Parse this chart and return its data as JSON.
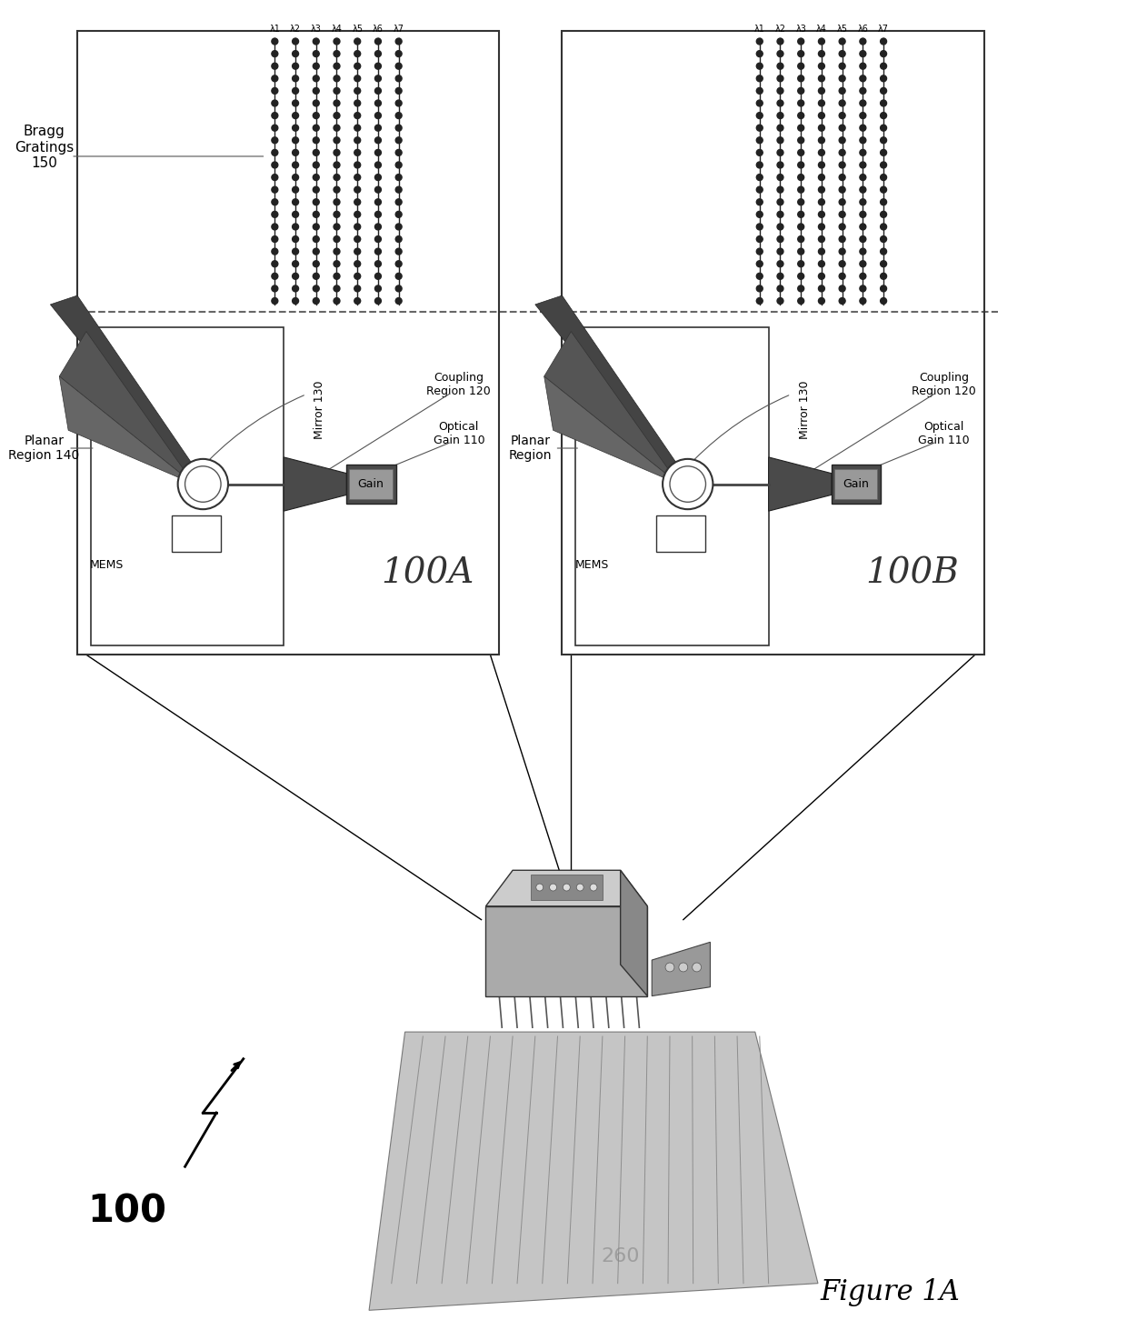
{
  "fig_width": 12.4,
  "fig_height": 14.74,
  "bg_color": "#ffffff",
  "title": "Figure 1A",
  "label_100": "100",
  "label_260": "260",
  "label_100A": "100A",
  "label_100B": "100B",
  "label_bragg": "Bragg\nGratings\n150",
  "label_planar_140": "Planar\nRegion 140",
  "label_planar_B": "Planar\nRegion",
  "label_mirror_130": "Mirror 130",
  "label_coupling_120": "Coupling\nRegion 120",
  "label_optical_110": "Optical\nGain 110",
  "label_mems": "MEMS",
  "label_gain": "Gain",
  "lambda_labels": [
    "λ1",
    "λ2",
    "λ3",
    "λ4",
    "λ5",
    "λ6",
    "λ7"
  ],
  "dark_gray": "#333333",
  "mid_gray": "#777777",
  "light_gray": "#bbbbbb",
  "gain_dark": "#4a4a4a",
  "gain_light": "#999999",
  "black": "#000000",
  "white": "#ffffff",
  "dashed_color": "#666666"
}
